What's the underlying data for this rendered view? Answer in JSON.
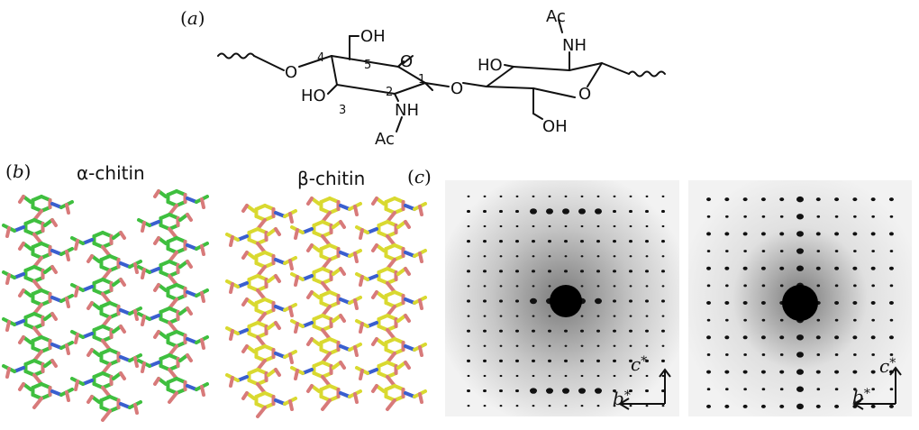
{
  "panels": {
    "a": {
      "label": "a"
    },
    "b": {
      "label": "b",
      "alpha_title": "α-chitin",
      "beta_title": "β-chitin"
    },
    "c": {
      "label": "c"
    }
  },
  "structure": {
    "atoms": {
      "oh_top": "OH",
      "o_ring_left": "O",
      "o_link_left": "O",
      "ho_left": "HO",
      "nh_left": "NH",
      "ac_left": "Ac",
      "o_glycosidic": "O",
      "ho_right": "HO",
      "ac_right": "Ac",
      "nh_right": "NH",
      "o_ring_right": "O",
      "oh_bottom": "OH"
    },
    "positions": {
      "c1": "1",
      "c2": "2",
      "c3": "3",
      "c4": "4",
      "c5": "5"
    }
  },
  "diffraction": {
    "axes": {
      "c_label": "c",
      "b_label": "b",
      "star": "*"
    }
  },
  "colors": {
    "alpha_carbon": "#3fbf3f",
    "beta_carbon": "#d9d930",
    "oxygen": "#d87a7a",
    "nitrogen": "#3a5fcf"
  }
}
